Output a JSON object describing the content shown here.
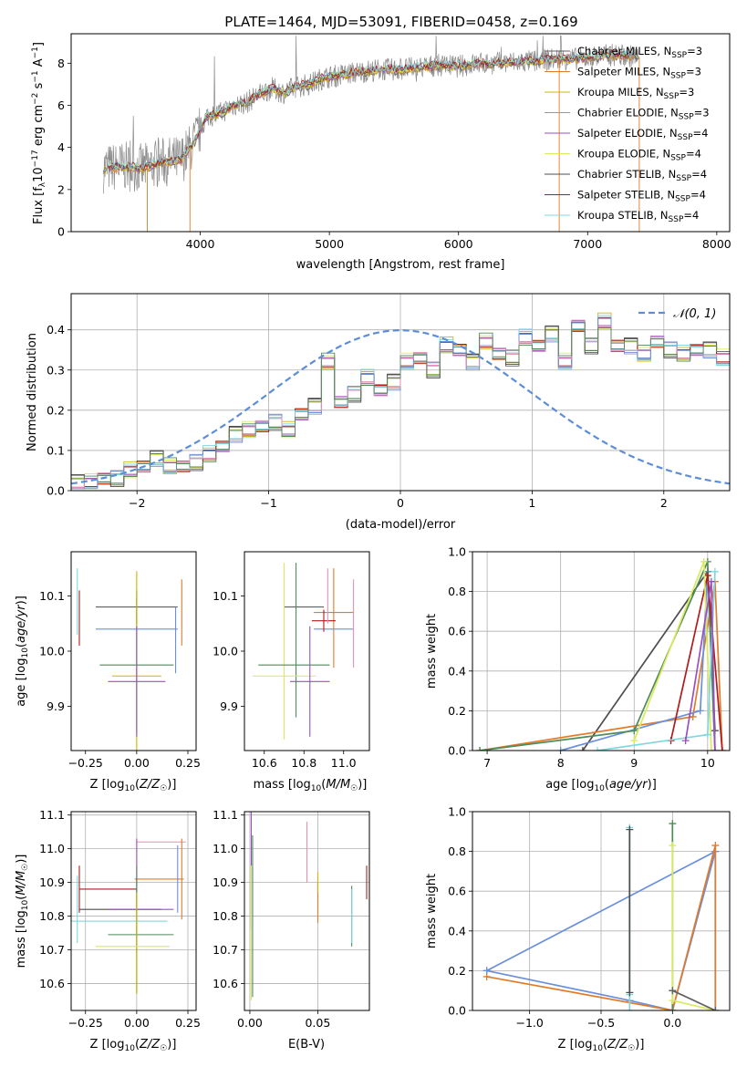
{
  "figure_title": "PLATE=1464, MJD=53091, FIBERID=0458, z=0.169",
  "colors": [
    "#606060",
    "#e07b2a",
    "#cdb800",
    "#999999",
    "#9b4fc0",
    "#d9ea5a",
    "#4d4d4d",
    "#b01c1c",
    "#7fd8de",
    "#6a8fdc",
    "#e98fb4",
    "#4f8a5a"
  ],
  "chart_data": [
    {
      "id": "spectrum",
      "type": "line",
      "title": "PLATE=1464, MJD=53091, FIBERID=0458, z=0.169",
      "xlabel": "wavelength [Angstrom, rest frame]",
      "ylabel": "Flux [f_λ 10^-17 erg cm^-2 s^-1 A^-1]",
      "xlim": [
        3000,
        8100
      ],
      "ylim": [
        0,
        9.4
      ],
      "xticks": [
        4000,
        5000,
        6000,
        7000,
        8000
      ],
      "yticks": [
        0,
        2,
        4,
        6,
        8
      ],
      "grid": false,
      "legend_position": "right",
      "legend": [
        {
          "model": "Chabrier MILES",
          "n": "3",
          "color": "#606060"
        },
        {
          "model": "Salpeter MILES",
          "n": "3",
          "color": "#e07b2a"
        },
        {
          "model": "Kroupa MILES",
          "n": "3",
          "color": "#cdb800"
        },
        {
          "model": "Chabrier ELODIE",
          "n": "3",
          "color": "#999999"
        },
        {
          "model": "Salpeter ELODIE",
          "n": "4",
          "color": "#9b4fc0"
        },
        {
          "model": "Kroupa ELODIE",
          "n": "4",
          "color": "#d9ea5a"
        },
        {
          "model": "Chabrier STELIB",
          "n": "4",
          "color": "#4d4d4d"
        },
        {
          "model": "Salpeter STELIB",
          "n": "4",
          "color": "#b01c1c"
        },
        {
          "model": "Kroupa STELIB",
          "n": "4",
          "color": "#7fd8de"
        }
      ],
      "model_curve": {
        "x": [
          3250,
          3400,
          3550,
          3700,
          3850,
          3950,
          4050,
          4150,
          4250,
          4350,
          4450,
          4550,
          4650,
          4750,
          4850,
          4950,
          5050,
          5150,
          5250,
          5400,
          5550,
          5700,
          5850,
          6000,
          6150,
          6300,
          6450,
          6600,
          6750,
          6900,
          7050,
          7200,
          7400
        ],
        "y": [
          3.0,
          3.1,
          3.0,
          3.3,
          3.4,
          4.2,
          5.5,
          5.6,
          6.0,
          6.1,
          6.5,
          6.8,
          6.6,
          6.9,
          7.0,
          7.3,
          7.4,
          7.5,
          7.6,
          7.7,
          7.7,
          7.8,
          7.9,
          7.85,
          8.0,
          8.0,
          8.05,
          8.1,
          8.2,
          8.2,
          8.3,
          8.4,
          8.3
        ]
      },
      "data_xrange": [
        3250,
        7400
      ],
      "deep_drops": [
        {
          "x": 3590,
          "y": 0
        },
        {
          "x": 3920,
          "y": 0
        },
        {
          "x": 6780,
          "y": 0
        },
        {
          "x": 7400,
          "y": 0
        }
      ]
    },
    {
      "id": "residuals",
      "type": "histogram",
      "xlabel": "(data-model)/error",
      "ylabel": "Normed distribution",
      "xlim": [
        -2.5,
        2.5
      ],
      "ylim": [
        0,
        0.49
      ],
      "xticks": [
        -2,
        -1,
        0,
        1,
        2
      ],
      "yticks": [
        0.0,
        0.1,
        0.2,
        0.3,
        0.4
      ],
      "grid": true,
      "legend_position": "top-right",
      "legend": [
        {
          "label": "𝒩(0, 1)",
          "style": "dashed",
          "color": "#5b8ed6"
        }
      ],
      "bin_width": 0.1,
      "bins_start": -2.5,
      "hist_mean": [
        0.02,
        0.02,
        0.03,
        0.03,
        0.05,
        0.06,
        0.08,
        0.06,
        0.06,
        0.07,
        0.09,
        0.11,
        0.14,
        0.15,
        0.16,
        0.17,
        0.15,
        0.19,
        0.21,
        0.32,
        0.22,
        0.24,
        0.28,
        0.25,
        0.27,
        0.32,
        0.33,
        0.3,
        0.36,
        0.35,
        0.32,
        0.37,
        0.34,
        0.33,
        0.38,
        0.36,
        0.39,
        0.32,
        0.41,
        0.36,
        0.42,
        0.36,
        0.36,
        0.34,
        0.37,
        0.35,
        0.34,
        0.35,
        0.35,
        0.33,
        0.31,
        0.32,
        0.29,
        0.29,
        0.28,
        0.3,
        0.28,
        0.24,
        0.3,
        0.24,
        0.21,
        0.22,
        0.19,
        0.18,
        0.18,
        0.17,
        0.15,
        0.15,
        0.15,
        0.12,
        0.12,
        0.1,
        0.09,
        0.08,
        0.08,
        0.05,
        0.04,
        0.04,
        0.03,
        0.02
      ],
      "jitter": [
        0.018,
        -0.015,
        0.012,
        -0.02,
        0.016,
        -0.012,
        0.02,
        -0.018,
        0.014,
        -0.016,
        0.022,
        -0.014
      ]
    },
    {
      "id": "age-vs-metallicity",
      "type": "errorbar",
      "xlabel": "Z [log10(Z/Z☉)]",
      "ylabel": "age [log10(age/yr)]",
      "xlim": [
        -0.32,
        0.29
      ],
      "ylim": [
        9.82,
        10.18
      ],
      "xticks": [
        -0.25,
        0.0,
        0.25
      ],
      "xtick_labels": [
        "−0.25",
        "0.00",
        "0.25"
      ],
      "yticks": [
        9.9,
        10.0,
        10.1
      ],
      "grid": false,
      "points": [
        {
          "x": 0.0,
          "xerr": 0.2,
          "y": 10.08,
          "yerr": 0.03,
          "c": "#606060"
        },
        {
          "x": 0.22,
          "xerr": 0.0,
          "y": 10.07,
          "yerr": 0.06,
          "c": "#e07b2a"
        },
        {
          "x": -0.29,
          "xerr": 0.0,
          "y": 10.09,
          "yerr": 0.06,
          "c": "#7fd8de"
        },
        {
          "x": 0.0,
          "xerr": 0.2,
          "y": 10.04,
          "yerr": 0.0,
          "c": "#6a8fdc"
        },
        {
          "x": -0.28,
          "xerr": 0.0,
          "y": 10.06,
          "yerr": 0.05,
          "c": "#b01c1c"
        },
        {
          "x": -0.2,
          "xerr": 0.0,
          "y": 10.06,
          "yerr": 0.0,
          "c": "#b01c1c"
        },
        {
          "x": 0.0,
          "xerr": 0.18,
          "y": 9.975,
          "yerr": 0.12,
          "c": "#4f8a5a"
        },
        {
          "x": 0.0,
          "xerr": 0.12,
          "y": 9.955,
          "yerr": 0.19,
          "c": "#cdb800"
        },
        {
          "x": 0.0,
          "xerr": 0.14,
          "y": 9.945,
          "yerr": 0.1,
          "c": "#9b4fc0"
        },
        {
          "x": 0.19,
          "xerr": 0.0,
          "y": 10.02,
          "yerr": 0.06,
          "c": "#6a8fdc"
        }
      ]
    },
    {
      "id": "age-vs-mass",
      "type": "errorbar",
      "xlabel": "mass [log10(M/M☉)]",
      "xlim": [
        10.5,
        11.13
      ],
      "ylim": [
        9.82,
        10.18
      ],
      "xticks": [
        10.6,
        10.8,
        11.0
      ],
      "xtick_labels": [
        "10.6",
        "10.8",
        "11.0"
      ],
      "yticks": [
        9.9,
        10.0,
        10.1
      ],
      "grid": false,
      "points": [
        {
          "x": 10.8,
          "xerr": 0.1,
          "y": 10.08,
          "yerr": 0.0,
          "c": "#606060"
        },
        {
          "x": 10.95,
          "xerr": 0.1,
          "y": 10.07,
          "yerr": 0.0,
          "c": "#e07b2a"
        },
        {
          "x": 10.95,
          "xerr": 0.0,
          "y": 10.06,
          "yerr": 0.09,
          "c": "#e07b2a"
        },
        {
          "x": 10.95,
          "xerr": 0.1,
          "y": 10.04,
          "yerr": 0.0,
          "c": "#6a8fdc"
        },
        {
          "x": 10.9,
          "xerr": 0.06,
          "y": 10.055,
          "yerr": 0.02,
          "c": "#b01c1c"
        },
        {
          "x": 10.76,
          "xerr": 0.0,
          "y": 10.02,
          "yerr": 0.14,
          "c": "#4f8a5a"
        },
        {
          "x": 10.7,
          "xerr": 0.0,
          "y": 10.0,
          "yerr": 0.16,
          "c": "#d9ea5a"
        },
        {
          "x": 10.75,
          "xerr": 0.18,
          "y": 9.975,
          "yerr": 0.0,
          "c": "#4f8a5a"
        },
        {
          "x": 10.7,
          "xerr": 0.16,
          "y": 9.955,
          "yerr": 0.0,
          "c": "#d9ea5a"
        },
        {
          "x": 10.83,
          "xerr": 0.1,
          "y": 9.945,
          "yerr": 0.1,
          "c": "#9b4fc0"
        },
        {
          "x": 11.05,
          "xerr": 0.0,
          "y": 10.05,
          "yerr": 0.08,
          "c": "#e98fb4"
        },
        {
          "x": 10.92,
          "xerr": 0.0,
          "y": 10.1,
          "yerr": 0.05,
          "c": "#e98fb4"
        }
      ]
    },
    {
      "id": "mass-weight-vs-age",
      "type": "line",
      "xlabel": "age [log10(age/yr)]",
      "ylabel": "mass weight",
      "xlim": [
        6.8,
        10.3
      ],
      "ylim": [
        0,
        1.0
      ],
      "xticks": [
        7,
        8,
        9,
        10
      ],
      "yticks": [
        0.0,
        0.2,
        0.4,
        0.6,
        0.8,
        1.0
      ],
      "grid": true,
      "series": [
        {
          "c": "#4d4d4d",
          "x": [
            8.3,
            10.0,
            10.1
          ],
          "y": [
            0.0,
            0.9,
            0.1
          ]
        },
        {
          "c": "#e07b2a",
          "x": [
            6.9,
            9.8,
            10.1,
            10.2
          ],
          "y": [
            0.0,
            0.17,
            0.85,
            0.0
          ]
        },
        {
          "c": "#6a8fdc",
          "x": [
            8.0,
            9.9,
            10.0,
            10.1
          ],
          "y": [
            0.0,
            0.2,
            0.9,
            0.0
          ]
        },
        {
          "c": "#4f8a5a",
          "x": [
            6.9,
            9.0,
            10.0,
            10.1
          ],
          "y": [
            0.0,
            0.1,
            0.95,
            0.0
          ]
        },
        {
          "c": "#b01c1c",
          "x": [
            9.5,
            10.0,
            10.2
          ],
          "y": [
            0.05,
            0.88,
            0.0
          ]
        },
        {
          "c": "#d9ea5a",
          "x": [
            9.0,
            9.95,
            10.05
          ],
          "y": [
            0.05,
            0.95,
            0.0
          ]
        },
        {
          "c": "#7fd8de",
          "x": [
            8.5,
            10.0,
            10.1
          ],
          "y": [
            0.0,
            0.08,
            0.9
          ]
        },
        {
          "c": "#9b4fc0",
          "x": [
            9.7,
            10.05,
            10.1
          ],
          "y": [
            0.05,
            0.85,
            0.0
          ]
        }
      ]
    },
    {
      "id": "mass-vs-metallicity",
      "type": "errorbar",
      "xlabel": "Z [log10(Z/Z☉)]",
      "ylabel": "mass [log10(M/M☉)]",
      "xlim": [
        -0.32,
        0.29
      ],
      "ylim": [
        10.52,
        11.11
      ],
      "xticks": [
        -0.25,
        0.0,
        0.25
      ],
      "xtick_labels": [
        "−0.25",
        "0.00",
        "0.25"
      ],
      "yticks": [
        10.6,
        10.7,
        10.8,
        10.9,
        11.0,
        11.1
      ],
      "grid": true,
      "points": [
        {
          "x": 0.12,
          "xerr": 0.12,
          "y": 11.02,
          "yerr": 0.0,
          "c": "#e98fb4"
        },
        {
          "x": 0.0,
          "xerr": 0.0,
          "y": 10.99,
          "yerr": 0.04,
          "c": "#9b4fc0"
        },
        {
          "x": 0.11,
          "xerr": 0.12,
          "y": 10.91,
          "yerr": 0.0,
          "c": "#e07b2a"
        },
        {
          "x": 0.22,
          "xerr": 0.0,
          "y": 10.91,
          "yerr": 0.12,
          "c": "#e07b2a"
        },
        {
          "x": 0.2,
          "xerr": 0.0,
          "y": 10.91,
          "yerr": 0.1,
          "c": "#6a8fdc"
        },
        {
          "x": -0.14,
          "xerr": 0.14,
          "y": 10.88,
          "yerr": 0.0,
          "c": "#b01c1c"
        },
        {
          "x": -0.28,
          "xerr": 0.0,
          "y": 10.88,
          "yerr": 0.07,
          "c": "#b01c1c"
        },
        {
          "x": -0.08,
          "xerr": 0.2,
          "y": 10.82,
          "yerr": 0.0,
          "c": "#4d4d4d"
        },
        {
          "x": 0.02,
          "xerr": 0.16,
          "y": 10.82,
          "yerr": 0.0,
          "c": "#9b4fc0"
        },
        {
          "x": -0.29,
          "xerr": 0.0,
          "y": 10.82,
          "yerr": 0.1,
          "c": "#7fd8de"
        },
        {
          "x": 0.0,
          "xerr": 0.0,
          "y": 10.82,
          "yerr": 0.13,
          "c": "#606060"
        },
        {
          "x": -0.1,
          "xerr": 0.25,
          "y": 10.785,
          "yerr": 0.0,
          "c": "#7fd8de"
        },
        {
          "x": 0.02,
          "xerr": 0.16,
          "y": 10.745,
          "yerr": 0.0,
          "c": "#4f8a5a"
        },
        {
          "x": 0.0,
          "xerr": 0.0,
          "y": 10.74,
          "yerr": 0.17,
          "c": "#4f8a5a"
        },
        {
          "x": 0.0,
          "xerr": 0.0,
          "y": 10.72,
          "yerr": 0.15,
          "c": "#cdb800"
        },
        {
          "x": -0.02,
          "xerr": 0.18,
          "y": 10.71,
          "yerr": 0.0,
          "c": "#d9ea5a"
        }
      ]
    },
    {
      "id": "mass-vs-ebv",
      "type": "errorbar",
      "xlabel": "E(B-V)",
      "xlim": [
        -0.004,
        0.088
      ],
      "ylim": [
        10.52,
        11.11
      ],
      "xticks": [
        0.0,
        0.05
      ],
      "xtick_labels": [
        "0.00",
        "0.05"
      ],
      "yticks": [
        10.6,
        10.7,
        10.8,
        10.9,
        11.0,
        11.1
      ],
      "grid": true,
      "points": [
        {
          "x": 0.001,
          "xerr": 0.0,
          "y": 10.94,
          "yerr": 0.18,
          "c": "#9b4fc0"
        },
        {
          "x": 0.002,
          "xerr": 0.0,
          "y": 10.8,
          "yerr": 0.24,
          "c": "#4f8a5a"
        },
        {
          "x": 0.001,
          "xerr": 0.0,
          "y": 10.75,
          "yerr": 0.2,
          "c": "#d9ea5a"
        },
        {
          "x": 0.042,
          "xerr": 0.0,
          "y": 10.99,
          "yerr": 0.09,
          "c": "#e98fb4"
        },
        {
          "x": 0.05,
          "xerr": 0.0,
          "y": 10.84,
          "yerr": 0.06,
          "c": "#e07b2a"
        },
        {
          "x": 0.05,
          "xerr": 0.0,
          "y": 10.9,
          "yerr": 0.03,
          "c": "#cdb800"
        },
        {
          "x": 0.075,
          "xerr": 0.0,
          "y": 10.8,
          "yerr": 0.09,
          "c": "#4f8a5a"
        },
        {
          "x": 0.075,
          "xerr": 0.0,
          "y": 10.8,
          "yerr": 0.08,
          "c": "#7fd8de"
        },
        {
          "x": 0.086,
          "xerr": 0.0,
          "y": 10.9,
          "yerr": 0.05,
          "c": "#b01c1c"
        }
      ]
    },
    {
      "id": "mass-weight-vs-metallicity",
      "type": "line",
      "xlabel": "Z [log10(Z/Z☉)]",
      "ylabel": "mass weight",
      "xlim": [
        -1.4,
        0.4
      ],
      "ylim": [
        0,
        1.0
      ],
      "xticks": [
        -1.0,
        -0.5,
        0.0
      ],
      "xtick_labels": [
        "−1.0",
        "−0.5",
        "0.0"
      ],
      "yticks": [
        0.0,
        0.2,
        0.4,
        0.6,
        0.8,
        1.0
      ],
      "grid": true,
      "series": [
        {
          "c": "#6a8fdc",
          "x": [
            -1.3,
            -0.3,
            0.0,
            0.3,
            0.3
          ],
          "y": [
            0.2,
            0.05,
            0.0,
            0.8,
            0.0
          ]
        },
        {
          "c": "#6a8fdc",
          "x": [
            -1.3,
            0.3
          ],
          "y": [
            0.2,
            0.8
          ]
        },
        {
          "c": "#e07b2a",
          "x": [
            -1.3,
            0.0,
            0.3,
            0.3
          ],
          "y": [
            0.17,
            0.0,
            0.83,
            0.0
          ]
        },
        {
          "c": "#7fd8de",
          "x": [
            -0.3,
            -0.3,
            -0.3
          ],
          "y": [
            0.92,
            0.0,
            0.08
          ]
        },
        {
          "c": "#4d4d4d",
          "x": [
            -0.3,
            -0.3
          ],
          "y": [
            0.91,
            0.09
          ]
        },
        {
          "c": "#4f8a5a",
          "x": [
            0.0,
            0.0,
            0.0
          ],
          "y": [
            0.94,
            0.0,
            0.1
          ]
        },
        {
          "c": "#d9ea5a",
          "x": [
            0.0,
            0.0,
            0.3
          ],
          "y": [
            0.83,
            0.05,
            0.0
          ]
        },
        {
          "c": "#606060",
          "x": [
            0.0,
            0.3
          ],
          "y": [
            0.1,
            0.0
          ]
        }
      ]
    }
  ]
}
